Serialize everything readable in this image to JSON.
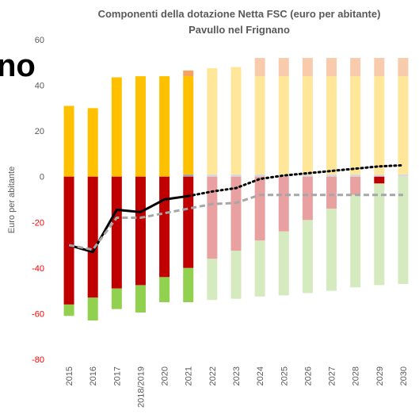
{
  "overlay_text": "no",
  "chart_data": {
    "type": "bar",
    "title": "Componenti della dotazione Netta FSC (euro per abitante)",
    "subtitle": "Pavullo nel Frignano",
    "y_label": "Euro per abitante",
    "categories": [
      "2015",
      "2016",
      "2017",
      "2018/2019",
      "2020",
      "2021",
      "2022",
      "2023",
      "2024",
      "2025",
      "2026",
      "2027",
      "2028",
      "2029",
      "2030"
    ],
    "ylim": [
      -80,
      60
    ],
    "yticks": [
      -80,
      -60,
      -40,
      -20,
      0,
      20,
      40,
      60
    ],
    "negative_tick_color": "#FF0000",
    "grid": false,
    "series": [
      {
        "color": "#A6A6A6",
        "values": [
          null,
          null,
          null,
          null,
          null,
          1,
          null,
          null,
          null,
          null,
          null,
          null,
          null,
          null,
          null
        ]
      },
      {
        "color": "#D9D9D9",
        "values": [
          null,
          null,
          null,
          null,
          null,
          null,
          1,
          1,
          1,
          1,
          1,
          1,
          1,
          1,
          1
        ]
      },
      {
        "color": "#FFC000",
        "values": [
          31,
          30,
          43.5,
          44,
          44,
          43,
          null,
          null,
          null,
          null,
          null,
          null,
          null,
          null,
          null
        ]
      },
      {
        "color": "#F4A460",
        "values": [
          null,
          null,
          null,
          null,
          null,
          2.5,
          null,
          null,
          null,
          null,
          null,
          null,
          null,
          null,
          null
        ]
      },
      {
        "color": "#FFE699",
        "values": [
          null,
          null,
          null,
          null,
          null,
          null,
          46.5,
          47,
          43,
          43,
          43,
          43,
          43,
          43,
          43
        ]
      },
      {
        "color": "#F8CBAD",
        "values": [
          null,
          null,
          null,
          null,
          null,
          null,
          null,
          null,
          8,
          8,
          8,
          8,
          8,
          8,
          8
        ]
      },
      {
        "color": "#C00000",
        "values": [
          -56,
          -53,
          -49,
          -47.5,
          -44,
          -40,
          null,
          null,
          null,
          null,
          null,
          null,
          null,
          -3,
          null
        ]
      },
      {
        "color": "#E8A0A0",
        "values": [
          null,
          null,
          null,
          null,
          null,
          null,
          -36,
          -32.5,
          -28,
          -24,
          -19,
          -14,
          -8,
          null,
          null
        ]
      },
      {
        "color": "#92D050",
        "values": [
          -5,
          -10,
          -9,
          -12,
          -11,
          -15,
          null,
          null,
          null,
          null,
          null,
          null,
          null,
          null,
          null
        ]
      },
      {
        "color": "#D5EBBF",
        "values": [
          null,
          null,
          null,
          null,
          null,
          null,
          -18,
          -21,
          -24.5,
          -28,
          -32,
          -36,
          -40.5,
          -44.5,
          -47
        ]
      }
    ],
    "lines": [
      {
        "color": "#000000",
        "dash": "solid",
        "values": [
          -30,
          -33,
          -14.5,
          -15.5,
          -10,
          -8.5,
          null,
          null,
          null,
          null,
          null,
          null,
          null,
          null,
          null
        ]
      },
      {
        "color": "#000000",
        "dash": "dotted",
        "values": [
          null,
          null,
          null,
          null,
          null,
          -8.5,
          -6.5,
          -5,
          -1,
          0.5,
          1.5,
          2.5,
          3.5,
          4.5,
          5
        ]
      },
      {
        "color": "#A6A6A6",
        "dash": "dashed",
        "values": [
          -30,
          -32,
          -18,
          -18,
          -16,
          -14,
          -12,
          -11.5,
          -8,
          -8,
          -8,
          -8,
          -8,
          -8,
          -8
        ]
      }
    ]
  }
}
